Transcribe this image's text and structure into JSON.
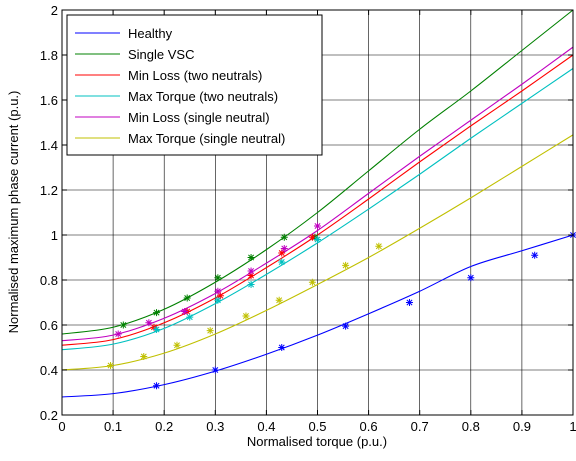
{
  "chart_data": {
    "type": "line",
    "title": "",
    "xlabel": "Normalised torque (p.u.)",
    "ylabel": "Normalised maximum phase current (p.u.)",
    "xlim": [
      0,
      1
    ],
    "ylim": [
      0.2,
      2
    ],
    "xticks": [
      0,
      0.1,
      0.2,
      0.3,
      0.4,
      0.5,
      0.6,
      0.7,
      0.8,
      0.9,
      1
    ],
    "xtick_labels": [
      "0",
      "0.1",
      "0.2",
      "0.3",
      "0.4",
      "0.5",
      "0.6",
      "0.7",
      "0.8",
      "0.9",
      "1"
    ],
    "yticks": [
      0.2,
      0.4,
      0.6,
      0.8,
      1.0,
      1.2,
      1.4,
      1.6,
      1.8,
      2.0
    ],
    "ytick_labels": [
      "0.2",
      "0.4",
      "0.6",
      "0.8",
      "1",
      "1.2",
      "1.4",
      "1.6",
      "1.8",
      "2"
    ],
    "grid": true,
    "legend_position": "top-left",
    "series": [
      {
        "name": "Healthy",
        "color": "#0000ff",
        "x": [
          0,
          0.1,
          0.2,
          0.3,
          0.4,
          0.5,
          0.6,
          0.7,
          0.8,
          0.9,
          1.0
        ],
        "y": [
          0.28,
          0.295,
          0.335,
          0.395,
          0.47,
          0.555,
          0.65,
          0.75,
          0.86,
          0.93,
          1.0
        ],
        "markers": {
          "x": [
            0.185,
            0.3,
            0.43,
            0.555,
            0.68,
            0.8,
            0.925,
            1.0
          ],
          "y": [
            0.33,
            0.4,
            0.5,
            0.595,
            0.7,
            0.81,
            0.91,
            1.0
          ]
        }
      },
      {
        "name": "Single VSC",
        "color": "#008000",
        "x": [
          0,
          0.1,
          0.2,
          0.3,
          0.4,
          0.5,
          0.6,
          0.7,
          0.8,
          0.9,
          1.0
        ],
        "y": [
          0.56,
          0.59,
          0.67,
          0.79,
          0.935,
          1.1,
          1.285,
          1.47,
          1.64,
          1.82,
          2.0
        ],
        "markers": {
          "x": [
            0.12,
            0.185,
            0.245,
            0.305,
            0.37,
            0.435,
            0.495
          ],
          "y": [
            0.6,
            0.655,
            0.72,
            0.81,
            0.9,
            0.99,
            0.99
          ]
        }
      },
      {
        "name": "Min Loss (two neutrals)",
        "color": "#ff0000",
        "x": [
          0,
          0.1,
          0.2,
          0.3,
          0.4,
          0.5,
          0.6,
          0.7,
          0.8,
          0.9,
          1.0
        ],
        "y": [
          0.51,
          0.535,
          0.61,
          0.72,
          0.855,
          1.0,
          1.16,
          1.325,
          1.485,
          1.64,
          1.8
        ],
        "markers": {
          "x": [
            0.18,
            0.245,
            0.31,
            0.37,
            0.43,
            0.49
          ],
          "y": [
            0.59,
            0.66,
            0.73,
            0.82,
            0.92,
            0.99
          ]
        }
      },
      {
        "name": "Max Torque (two neutrals)",
        "color": "#00c0c0",
        "x": [
          0,
          0.1,
          0.2,
          0.3,
          0.4,
          0.5,
          0.6,
          0.7,
          0.8,
          0.9,
          1.0
        ],
        "y": [
          0.49,
          0.515,
          0.585,
          0.695,
          0.825,
          0.965,
          1.115,
          1.27,
          1.43,
          1.585,
          1.74
        ],
        "markers": {
          "x": [
            0.185,
            0.25,
            0.305,
            0.37,
            0.43,
            0.5
          ],
          "y": [
            0.58,
            0.635,
            0.71,
            0.78,
            0.88,
            0.98
          ]
        }
      },
      {
        "name": "Min Loss (single neutral)",
        "color": "#c000c0",
        "x": [
          0,
          0.1,
          0.2,
          0.3,
          0.4,
          0.5,
          0.6,
          0.7,
          0.8,
          0.9,
          1.0
        ],
        "y": [
          0.53,
          0.555,
          0.63,
          0.74,
          0.875,
          1.02,
          1.185,
          1.35,
          1.51,
          1.67,
          1.835
        ],
        "markers": {
          "x": [
            0.11,
            0.17,
            0.24,
            0.305,
            0.37,
            0.435,
            0.5
          ],
          "y": [
            0.56,
            0.61,
            0.66,
            0.75,
            0.84,
            0.94,
            1.04
          ]
        }
      },
      {
        "name": "Max Torque (single neutral)",
        "color": "#c0c000",
        "x": [
          0,
          0.1,
          0.2,
          0.3,
          0.4,
          0.5,
          0.6,
          0.7,
          0.8,
          0.9,
          1.0
        ],
        "y": [
          0.4,
          0.42,
          0.475,
          0.56,
          0.665,
          0.78,
          0.9,
          1.03,
          1.165,
          1.305,
          1.445
        ],
        "markers": {
          "x": [
            0.095,
            0.16,
            0.225,
            0.29,
            0.36,
            0.425,
            0.49,
            0.555,
            0.62
          ],
          "y": [
            0.42,
            0.46,
            0.51,
            0.575,
            0.64,
            0.71,
            0.79,
            0.865,
            0.95
          ]
        }
      }
    ]
  }
}
